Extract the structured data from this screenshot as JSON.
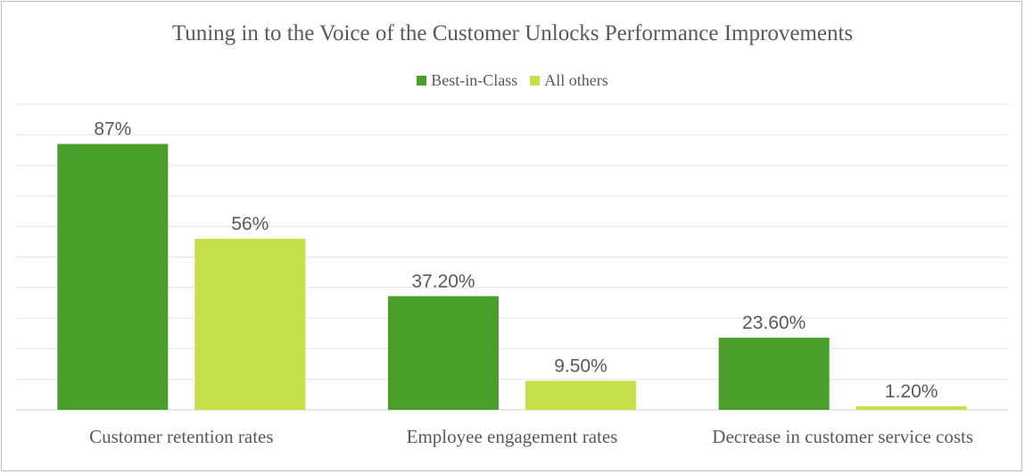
{
  "chart_data": {
    "type": "bar",
    "title": "Tuning in to the Voice of the Customer Unlocks Performance Improvements",
    "categories": [
      "Customer retention rates",
      "Employee engagement rates",
      "Decrease in customer service costs"
    ],
    "series": [
      {
        "name": "Best-in-Class",
        "color": "#4a9e2a",
        "values": [
          87,
          37.2,
          23.6
        ],
        "labels": [
          "87%",
          "37.20%",
          "23.60%"
        ]
      },
      {
        "name": "All others",
        "color": "#c5e04a",
        "values": [
          56,
          9.5,
          1.2
        ],
        "labels": [
          "56%",
          "9.50%",
          "1.20%"
        ]
      }
    ],
    "ylim": [
      0,
      100
    ],
    "grid": true,
    "legend_position": "top"
  }
}
